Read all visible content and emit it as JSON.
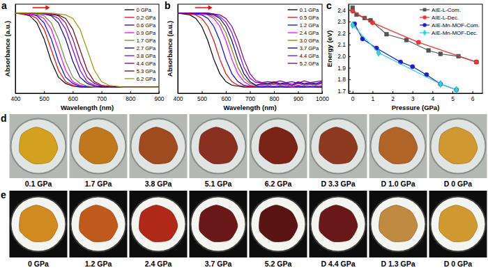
{
  "chart_data": [
    {
      "type": "line",
      "title": "a",
      "x_label": "Wavelength (nm)",
      "y_label": "Absorbance (a.u.)",
      "x": [
        400,
        425,
        450,
        475,
        500,
        525,
        550,
        575,
        600,
        625,
        650,
        675,
        700,
        725,
        750,
        775,
        800,
        825,
        850,
        875,
        900
      ],
      "xlim": [
        400,
        900
      ],
      "xticks": [
        400,
        500,
        600,
        700,
        800,
        900
      ],
      "ylim": [
        0.05,
        1.05
      ],
      "tick_labels": "x",
      "grid": false,
      "legend": "upper right",
      "series": [
        {
          "name": "0 GPa",
          "color": "#000000",
          "values": [
            0.95,
            0.94,
            0.92,
            0.84,
            0.66,
            0.41,
            0.23,
            0.16,
            0.13,
            0.12,
            0.12,
            0.12,
            0.12,
            0.12,
            0.12,
            0.12,
            0.12,
            0.12,
            0.12,
            0.12,
            0.12
          ]
        },
        {
          "name": "0.2 GPa",
          "color": "#ff0000",
          "values": [
            0.95,
            0.94,
            0.93,
            0.89,
            0.77,
            0.54,
            0.31,
            0.18,
            0.14,
            0.13,
            0.12,
            0.12,
            0.12,
            0.12,
            0.12,
            0.12,
            0.12,
            0.12,
            0.12,
            0.12,
            0.12
          ]
        },
        {
          "name": "0.6 GPa",
          "color": "#0000ff",
          "values": [
            0.95,
            0.95,
            0.94,
            0.92,
            0.84,
            0.66,
            0.41,
            0.23,
            0.16,
            0.13,
            0.12,
            0.12,
            0.12,
            0.12,
            0.12,
            0.12,
            0.12,
            0.12,
            0.12,
            0.12,
            0.12
          ]
        },
        {
          "name": "0.9 GPa",
          "color": "#ff00ff",
          "values": [
            0.95,
            0.95,
            0.94,
            0.93,
            0.89,
            0.77,
            0.54,
            0.31,
            0.18,
            0.14,
            0.13,
            0.12,
            0.12,
            0.12,
            0.12,
            0.12,
            0.12,
            0.12,
            0.12,
            0.12,
            0.12
          ]
        },
        {
          "name": "1.7 GPa",
          "color": "#6b8e23",
          "values": [
            0.95,
            0.95,
            0.95,
            0.94,
            0.92,
            0.84,
            0.66,
            0.41,
            0.23,
            0.16,
            0.13,
            0.12,
            0.12,
            0.12,
            0.12,
            0.12,
            0.12,
            0.12,
            0.12,
            0.12,
            0.12
          ]
        },
        {
          "name": "2.7 GPa",
          "color": "#000080",
          "values": [
            0.95,
            0.95,
            0.95,
            0.95,
            0.94,
            0.92,
            0.84,
            0.66,
            0.41,
            0.23,
            0.16,
            0.13,
            0.12,
            0.12,
            0.12,
            0.12,
            0.12,
            0.12,
            0.12,
            0.12,
            0.12
          ]
        },
        {
          "name": "3.8 GPa",
          "color": "#8000ff",
          "values": [
            0.95,
            0.95,
            0.95,
            0.95,
            0.94,
            0.93,
            0.89,
            0.77,
            0.54,
            0.31,
            0.18,
            0.14,
            0.13,
            0.12,
            0.12,
            0.12,
            0.12,
            0.12,
            0.12,
            0.12,
            0.12
          ]
        },
        {
          "name": "4.4 GPa",
          "color": "#800080",
          "values": [
            0.95,
            0.95,
            0.95,
            0.95,
            0.95,
            0.94,
            0.92,
            0.84,
            0.66,
            0.41,
            0.23,
            0.16,
            0.13,
            0.12,
            0.12,
            0.12,
            0.12,
            0.12,
            0.12,
            0.12,
            0.12
          ]
        },
        {
          "name": "5.3 GPa",
          "color": "#800000",
          "values": [
            0.95,
            0.95,
            0.95,
            0.95,
            0.95,
            0.94,
            0.93,
            0.89,
            0.77,
            0.54,
            0.31,
            0.18,
            0.14,
            0.13,
            0.12,
            0.12,
            0.12,
            0.12,
            0.12,
            0.12,
            0.12
          ]
        },
        {
          "name": "6.2 GPa",
          "color": "#999900",
          "values": [
            0.95,
            0.95,
            0.95,
            0.95,
            0.95,
            0.95,
            0.94,
            0.93,
            0.89,
            0.77,
            0.54,
            0.31,
            0.18,
            0.14,
            0.13,
            0.12,
            0.12,
            0.12,
            0.12,
            0.12,
            0.12
          ]
        }
      ]
    },
    {
      "type": "line",
      "title": "b",
      "x_label": "Wavelength (nm)",
      "y_label": "Absorbance (a.u.)",
      "x": [
        400,
        425,
        450,
        475,
        500,
        525,
        550,
        575,
        600,
        625,
        650,
        675,
        700,
        725,
        750,
        775,
        800,
        825,
        850,
        875,
        900,
        925,
        950,
        975,
        1000
      ],
      "xlim": [
        400,
        1000
      ],
      "xticks": [
        400,
        500,
        600,
        700,
        800,
        900,
        1000
      ],
      "ylim": [
        0.05,
        1.05
      ],
      "tick_labels": "x",
      "grid": false,
      "legend": "upper right",
      "series": [
        {
          "name": "0.1 GPa",
          "color": "#000000",
          "values": [
            0.95,
            0.94,
            0.93,
            0.89,
            0.8,
            0.64,
            0.43,
            0.27,
            0.18,
            0.14,
            0.13,
            0.12,
            0.12,
            0.12,
            0.12,
            0.12,
            0.12,
            0.12,
            0.12,
            0.12,
            0.12,
            0.12,
            0.12,
            0.12,
            0.12
          ]
        },
        {
          "name": "0.5 GPa",
          "color": "#ff0000",
          "values": [
            0.95,
            0.95,
            0.94,
            0.93,
            0.89,
            0.8,
            0.64,
            0.43,
            0.27,
            0.18,
            0.14,
            0.13,
            0.12,
            0.13,
            0.12,
            0.12,
            0.13,
            0.12,
            0.12,
            0.12,
            0.13,
            0.12,
            0.12,
            0.12,
            0.13
          ]
        },
        {
          "name": "1.2 GPa",
          "color": "#0000ff",
          "values": [
            0.95,
            0.95,
            0.95,
            0.94,
            0.93,
            0.89,
            0.8,
            0.64,
            0.43,
            0.27,
            0.18,
            0.14,
            0.13,
            0.13,
            0.12,
            0.13,
            0.12,
            0.13,
            0.12,
            0.12,
            0.13,
            0.12,
            0.13,
            0.12,
            0.12
          ]
        },
        {
          "name": "2.4 GPa",
          "color": "#ff00ff",
          "values": [
            0.95,
            0.95,
            0.95,
            0.95,
            0.94,
            0.93,
            0.89,
            0.8,
            0.64,
            0.43,
            0.27,
            0.18,
            0.14,
            0.13,
            0.14,
            0.13,
            0.15,
            0.13,
            0.14,
            0.12,
            0.14,
            0.13,
            0.15,
            0.13,
            0.14
          ]
        },
        {
          "name": "3.0 GPa",
          "color": "#808000",
          "values": [
            0.95,
            0.95,
            0.95,
            0.95,
            0.95,
            0.94,
            0.91,
            0.85,
            0.73,
            0.54,
            0.34,
            0.22,
            0.16,
            0.14,
            0.15,
            0.14,
            0.16,
            0.14,
            0.15,
            0.13,
            0.16,
            0.14,
            0.15,
            0.14,
            0.16
          ]
        },
        {
          "name": "3.7 GPa",
          "color": "#000080",
          "values": [
            0.95,
            0.95,
            0.95,
            0.95,
            0.95,
            0.94,
            0.93,
            0.89,
            0.8,
            0.64,
            0.43,
            0.27,
            0.18,
            0.14,
            0.16,
            0.15,
            0.17,
            0.15,
            0.16,
            0.14,
            0.17,
            0.15,
            0.16,
            0.15,
            0.17
          ]
        },
        {
          "name": "4.4 GPa",
          "color": "#8000ff",
          "values": [
            0.95,
            0.95,
            0.95,
            0.95,
            0.95,
            0.95,
            0.94,
            0.91,
            0.85,
            0.73,
            0.54,
            0.34,
            0.22,
            0.17,
            0.17,
            0.16,
            0.18,
            0.16,
            0.17,
            0.15,
            0.18,
            0.16,
            0.17,
            0.16,
            0.18
          ]
        },
        {
          "name": "5.2 GPa",
          "color": "#800080",
          "values": [
            0.95,
            0.95,
            0.95,
            0.95,
            0.95,
            0.95,
            0.94,
            0.93,
            0.89,
            0.8,
            0.64,
            0.43,
            0.27,
            0.19,
            0.17,
            0.18,
            0.17,
            0.19,
            0.17,
            0.18,
            0.16,
            0.19,
            0.17,
            0.18,
            0.19
          ]
        }
      ]
    },
    {
      "type": "line",
      "title": "c",
      "x_label": "Pressure (GPa)",
      "y_label": "Energy (eV)",
      "xlim": [
        -0.2,
        6.5
      ],
      "xticks": [
        0,
        1,
        2,
        3,
        4,
        5,
        6
      ],
      "ylim": [
        1.68,
        2.45
      ],
      "yticks": [
        1.7,
        1.8,
        1.9,
        {
          "value": 2,
          "label": "2.0"
        },
        2.1,
        2.2,
        2.3,
        2.4
      ],
      "grid": false,
      "legend": "upper right",
      "series": [
        {
          "name": "AIE-L-Com.",
          "color": "#555555",
          "marker": "square",
          "line_style": "solid",
          "x": [
            0,
            0.2,
            0.6,
            0.9,
            1.7,
            2.7,
            3.8,
            4.4,
            5.3,
            6.2
          ],
          "values": [
            2.42,
            2.36,
            2.33,
            2.31,
            2.19,
            2.14,
            2.05,
            2.02,
            2.0,
            1.95
          ]
        },
        {
          "name": "AIE-L-Dec.",
          "color": "#ff3030",
          "marker": "circle",
          "line_style": "solid",
          "x": [
            6.2,
            3.3,
            1.0,
            0
          ],
          "values": [
            1.95,
            2.12,
            2.29,
            2.39
          ]
        },
        {
          "name": "AIE-Mn-MOF-Com.",
          "color": "#1a1ae0",
          "marker": "circle",
          "line_style": "solid",
          "x": [
            0.1,
            0.5,
            1.2,
            2.4,
            3.0,
            3.7,
            4.4,
            5.2
          ],
          "values": [
            2.28,
            2.15,
            2.07,
            1.95,
            1.91,
            1.84,
            1.76,
            1.71
          ]
        },
        {
          "name": "AIE-Mn-MOF-Dec.",
          "color": "#2ad4e0",
          "marker": "diamond",
          "line_style": "solid",
          "x": [
            5.2,
            4.4,
            1.3,
            0
          ],
          "values": [
            1.71,
            1.76,
            2.03,
            2.27
          ]
        }
      ]
    }
  ],
  "photos": [
    {
      "title": "d",
      "labels": [
        "0.1 GPa",
        "1.7 GPa",
        "3.8 GPa",
        "5.1 GPa",
        "6.2 GPa",
        "D 3.3 GPa",
        "D 1.0 GPa",
        "D 0 GPa"
      ],
      "colors": [
        "#d4a020",
        "#c0781c",
        "#a04a20",
        "#8a3020",
        "#7a2418",
        "#8e3a20",
        "#b06428",
        "#d09830"
      ]
    },
    {
      "title": "e",
      "labels": [
        "0 GPa",
        "1.2 GPa",
        "2.4 GPa",
        "3.7 GPa",
        "5.2 GPa",
        "D 4.4 GPa",
        "D 1.3 GPa",
        "D 0 GPa"
      ],
      "colors": [
        "#d08a20",
        "#c05a1c",
        "#b02818",
        "#6a1818",
        "#5a1414",
        "#6a1818",
        "#c08a40",
        "#d09a30"
      ]
    }
  ]
}
